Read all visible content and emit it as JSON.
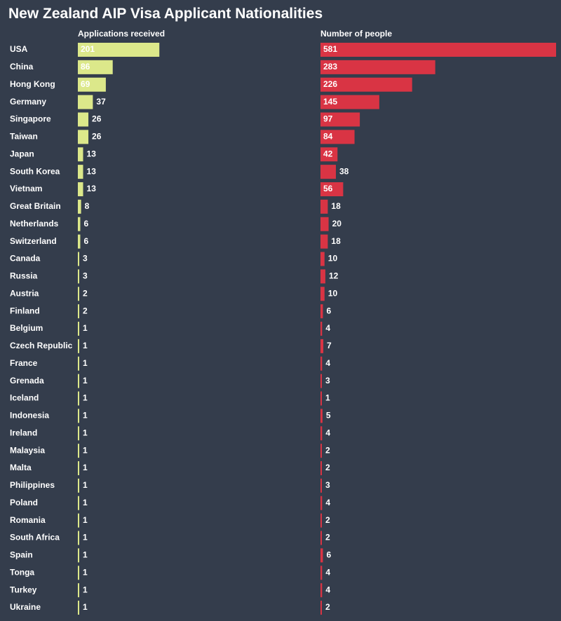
{
  "chart_data": {
    "type": "bar",
    "orientation": "horizontal",
    "title": "New Zealand AIP Visa Applicant Nationalities",
    "categories": [
      "USA",
      "China",
      "Hong Kong",
      "Germany",
      "Singapore",
      "Taiwan",
      "Japan",
      "South Korea",
      "Vietnam",
      "Great Britain",
      "Netherlands",
      "Switzerland",
      "Canada",
      "Russia",
      "Austria",
      "Finland",
      "Belgium",
      "Czech Republic",
      "France",
      "Grenada",
      "Iceland",
      "Indonesia",
      "Ireland",
      "Malaysia",
      "Malta",
      "Philippines",
      "Poland",
      "Romania",
      "South Africa",
      "Spain",
      "Tonga",
      "Turkey",
      "Ukraine"
    ],
    "series": [
      {
        "name": "Applications received",
        "color": "#dce88a",
        "label_color": "#343d4c",
        "values": [
          201,
          86,
          69,
          37,
          26,
          26,
          13,
          13,
          13,
          8,
          6,
          6,
          3,
          3,
          2,
          2,
          1,
          1,
          1,
          1,
          1,
          1,
          1,
          1,
          1,
          1,
          1,
          1,
          1,
          1,
          1,
          1,
          1
        ]
      },
      {
        "name": "Number of people",
        "color": "#d93444",
        "label_color": "#ffffff",
        "values": [
          581,
          283,
          226,
          145,
          97,
          84,
          42,
          38,
          56,
          18,
          20,
          18,
          10,
          12,
          10,
          6,
          4,
          7,
          4,
          3,
          1,
          5,
          4,
          2,
          2,
          3,
          4,
          2,
          2,
          6,
          4,
          4,
          2
        ]
      }
    ]
  }
}
